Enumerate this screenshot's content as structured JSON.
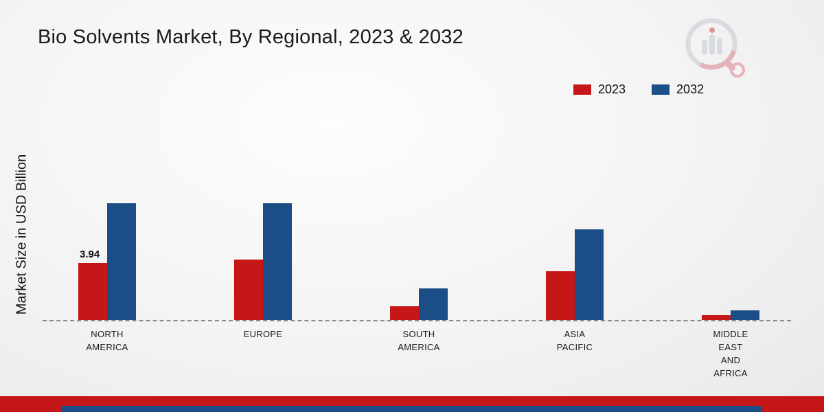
{
  "title": "Bio Solvents Market, By Regional, 2023 & 2032",
  "ylabel": "Market Size in USD Billion",
  "legend": [
    {
      "label": "2023",
      "color": "#c51718"
    },
    {
      "label": "2032",
      "color": "#1b4e87"
    }
  ],
  "colors": {
    "series_2023": "#c51718",
    "series_2032": "#1b4e87",
    "footer_red": "#c51718",
    "footer_navy": "#1b4e87",
    "axis_dash": "#8a8a8a",
    "background": "#f3f3f3",
    "text": "#1a1a1a"
  },
  "chart_data": {
    "type": "bar",
    "title": "Bio Solvents Market, By Regional, 2023 & 2032",
    "xlabel": "",
    "ylabel": "Market Size in USD Billion",
    "ylim": [
      0,
      9
    ],
    "grid": false,
    "legend_position": "top-right",
    "categories": [
      "North America",
      "Europe",
      "South America",
      "Asia Pacific",
      "Middle East and Africa"
    ],
    "category_display_lines": [
      [
        "NORTH",
        "AMERICA"
      ],
      [
        "EUROPE"
      ],
      [
        "SOUTH",
        "AMERICA"
      ],
      [
        "ASIA",
        "PACIFIC"
      ],
      [
        "MIDDLE",
        "EAST",
        "AND",
        "AFRICA"
      ]
    ],
    "series": [
      {
        "name": "2023",
        "color": "#c51718",
        "values": [
          3.94,
          4.2,
          0.95,
          3.4,
          0.35
        ]
      },
      {
        "name": "2032",
        "color": "#1b4e87",
        "values": [
          8.1,
          8.1,
          2.2,
          6.3,
          0.65
        ]
      }
    ],
    "data_labels": [
      {
        "series": "2023",
        "category": "North America",
        "text": "3.94"
      }
    ]
  }
}
